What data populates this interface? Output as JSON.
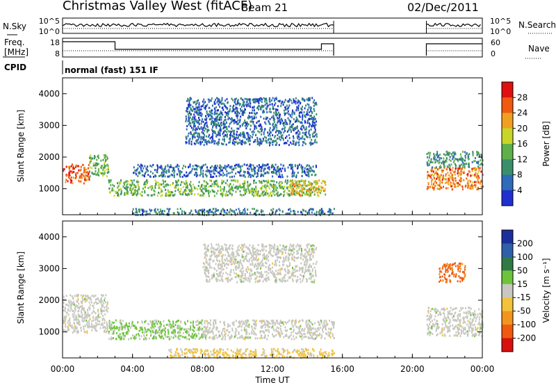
{
  "header": {
    "station": "Christmas Valley West (fitACF)",
    "beam": "Beam 21",
    "date": "02/Dec/2011"
  },
  "top_panel": {
    "nsky_label": "N.Sky",
    "nsearch_label": "N.Search",
    "left_ticks": [
      "10^5",
      "10^0"
    ],
    "right_ticks": [
      "10^5",
      "10^0"
    ],
    "freq_label_line1": "Freq.",
    "freq_label_line2": "[MHz]",
    "freq_ticks": [
      "18",
      "8"
    ],
    "nave_label": "Nave",
    "nave_ticks": [
      "60",
      "0"
    ],
    "cpid_label": "CPID",
    "cpid_value": "normal (fast) 151 IF"
  },
  "x_axis": {
    "label": "Time UT",
    "ticks": [
      "00:00",
      "04:00",
      "08:00",
      "12:00",
      "16:00",
      "20:00",
      "00:00"
    ]
  },
  "panels": [
    {
      "ylabel": "Slant Range [km]",
      "yticks": [
        "4000",
        "3000",
        "2000",
        "1000"
      ],
      "colorbar_label": "Power [dB]",
      "colorbar_ticks": [
        "28",
        "24",
        "20",
        "16",
        "12",
        "8",
        "4"
      ]
    },
    {
      "ylabel": "Slant Range [km]",
      "yticks": [
        "4000",
        "3000",
        "2000",
        "1000"
      ],
      "colorbar_label": "Velocity [m s⁻¹]",
      "colorbar_ticks": [
        "200",
        "100",
        "50",
        "15",
        "-15",
        "-50",
        "-100",
        "-200"
      ]
    }
  ],
  "colors": {
    "power": [
      "#1f2fd0",
      "#2e6bb8",
      "#3a8f6a",
      "#5fb04a",
      "#c8d62a",
      "#f0a020",
      "#f05a10",
      "#e01010"
    ],
    "velocity": [
      "#1b2f9c",
      "#2f5fa8",
      "#2f7a45",
      "#6dc43a",
      "#c8c8c0",
      "#f2c23a",
      "#f2951e",
      "#f05a10",
      "#d81010"
    ]
  },
  "chart_data": [
    {
      "type": "heatmap",
      "title": "Beam 21",
      "xlabel": "Time UT",
      "ylabel": "Slant Range [km]",
      "x_range_hours": [
        0,
        24
      ],
      "y_range_km": [
        180,
        4500
      ],
      "z_label": "Power [dB]",
      "z_range": [
        0,
        32
      ],
      "features": [
        {
          "t": [
            0.0,
            1.5
          ],
          "range_km": [
            1200,
            1800
          ],
          "value": 26
        },
        {
          "t": [
            1.5,
            2.6
          ],
          "range_km": [
            1400,
            2100
          ],
          "value": 14
        },
        {
          "t": [
            2.6,
            14.5
          ],
          "range_km": [
            800,
            1300
          ],
          "value": 14
        },
        {
          "t": [
            4.0,
            14.5
          ],
          "range_km": [
            1400,
            1800
          ],
          "value": 6
        },
        {
          "t": [
            7.0,
            14.5
          ],
          "range_km": [
            2400,
            3900
          ],
          "value": 6
        },
        {
          "t": [
            4.0,
            15.5
          ],
          "range_km": [
            200,
            400
          ],
          "value": 8
        },
        {
          "t": [
            13.0,
            15.0
          ],
          "range_km": [
            800,
            1300
          ],
          "value": 20
        },
        {
          "t": [
            20.8,
            24.0
          ],
          "range_km": [
            1000,
            1700
          ],
          "value": 24
        },
        {
          "t": [
            20.8,
            24.0
          ],
          "range_km": [
            1700,
            2200
          ],
          "value": 10
        }
      ]
    },
    {
      "type": "heatmap",
      "title": "",
      "xlabel": "Time UT",
      "ylabel": "Slant Range [km]",
      "x_range_hours": [
        0,
        24
      ],
      "y_range_km": [
        180,
        4500
      ],
      "z_label": "Velocity [m s⁻¹]",
      "z_range": [
        -250,
        250
      ],
      "features": [
        {
          "t": [
            0.0,
            2.6
          ],
          "range_km": [
            1000,
            2200
          ],
          "value": 0
        },
        {
          "t": [
            2.6,
            8.0
          ],
          "range_km": [
            800,
            1400
          ],
          "value": 40
        },
        {
          "t": [
            8.0,
            15.5
          ],
          "range_km": [
            800,
            1400
          ],
          "value": 0
        },
        {
          "t": [
            6.0,
            15.5
          ],
          "range_km": [
            200,
            500
          ],
          "value": -40
        },
        {
          "t": [
            8.0,
            14.5
          ],
          "range_km": [
            2600,
            3800
          ],
          "value": 0
        },
        {
          "t": [
            20.8,
            24.0
          ],
          "range_km": [
            900,
            1800
          ],
          "value": 0
        },
        {
          "t": [
            21.5,
            23.0
          ],
          "range_km": [
            2600,
            3200
          ],
          "value": -150
        }
      ]
    }
  ]
}
